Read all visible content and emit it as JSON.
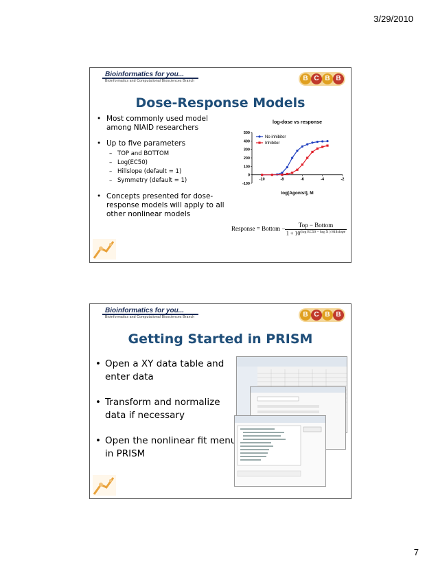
{
  "date": "3/29/2010",
  "page_number": "7",
  "banner": {
    "title": "Bioinformatics for you...",
    "subtitle": "Bioinformatics and Computational Biosciences Branch",
    "logo": [
      "B",
      "C",
      "B",
      "B"
    ]
  },
  "slide1": {
    "title": "Dose-Response Models",
    "bullets": {
      "b1": "Most commonly used model among NIAID researchers",
      "b2": "Up to five parameters",
      "b2_sub": [
        "TOP and BOTTOM",
        "Log(EC50)",
        "Hillslope (default = 1)",
        "Symmetry (default = 1)"
      ],
      "b3": "Concepts presented for dose-response models will apply to all other nonlinear models"
    },
    "formula": {
      "lhs": "Response = Bottom −",
      "numerator": "Top − Bottom",
      "den_base": "1 + 10",
      "den_exp": "(log EC50 − log X ) Hillslope"
    }
  },
  "chart_data": {
    "type": "line",
    "title": "log-dose vs response",
    "xlabel": "log[Agonist], M",
    "ylabel": "",
    "xlim": [
      -11,
      -2
    ],
    "ylim": [
      -100,
      500
    ],
    "xticks": [
      -10,
      -8,
      -6,
      -4,
      -2
    ],
    "yticks": [
      -100,
      0,
      100,
      200,
      300,
      400,
      500
    ],
    "legend_position": "top-left",
    "series": [
      {
        "name": "No inhibitor",
        "color": "#1f3fbf",
        "marker": "circle",
        "x": [
          -10,
          -9,
          -8.5,
          -8,
          -7.5,
          -7,
          -6.5,
          -6,
          -5.5,
          -5,
          -4.5,
          -4,
          -3.5
        ],
        "y": [
          0,
          2,
          5,
          25,
          90,
          200,
          285,
          335,
          360,
          380,
          390,
          395,
          398
        ]
      },
      {
        "name": "Inhibitor",
        "color": "#e0202a",
        "marker": "square",
        "x": [
          -10,
          -9,
          -8,
          -7.5,
          -7,
          -6.5,
          -6,
          -5.5,
          -5,
          -4.5,
          -4,
          -3.5
        ],
        "y": [
          0,
          0,
          2,
          10,
          25,
          60,
          120,
          200,
          270,
          310,
          330,
          345
        ]
      }
    ]
  },
  "slide2": {
    "title": "Getting Started in PRISM",
    "bullets": {
      "b1": "Open a XY data table and enter data",
      "b2": "Transform and normalize data if necessary",
      "b3": "Open the nonlinear fit menu in PRISM"
    }
  }
}
